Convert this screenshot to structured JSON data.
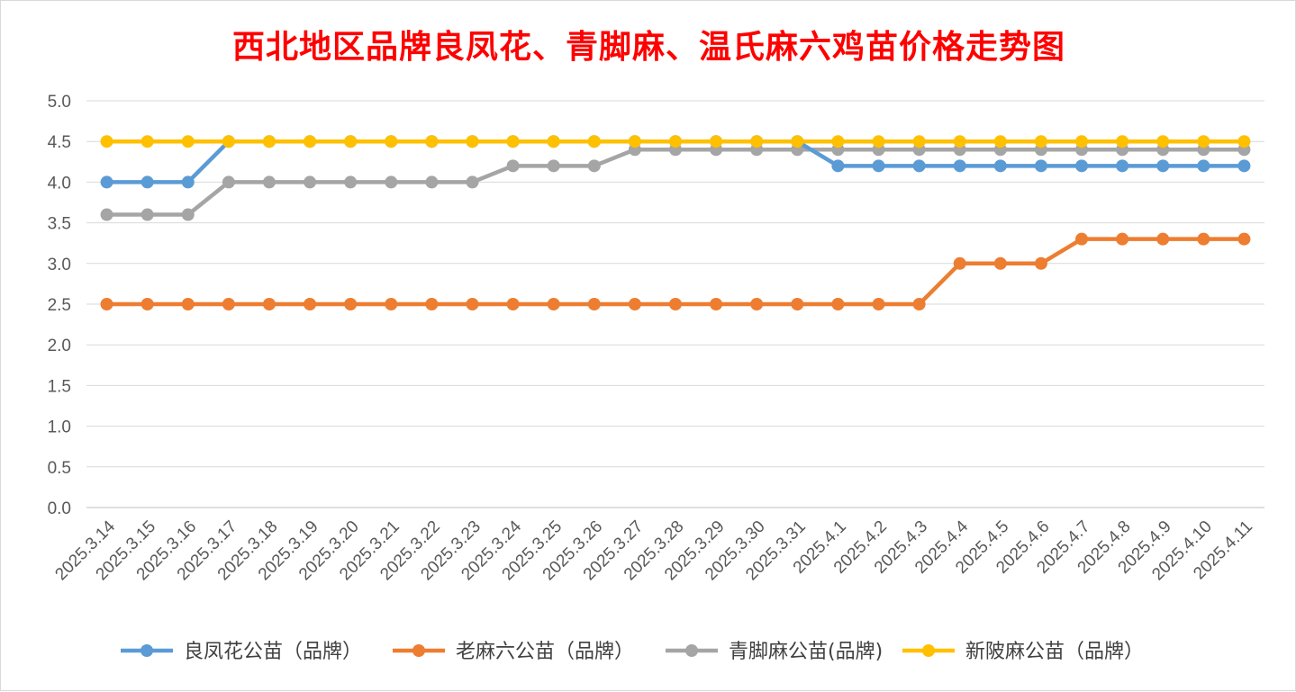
{
  "chart_data": {
    "type": "line",
    "title": "西北地区品牌良凤花、青脚麻、温氏麻六鸡苗价格走势图",
    "xlabel": "",
    "ylabel": "",
    "ylim": [
      0,
      5
    ],
    "y_ticks": [
      "0.0",
      "0.5",
      "1.0",
      "1.5",
      "2.0",
      "2.5",
      "3.0",
      "3.5",
      "4.0",
      "4.5",
      "5.0"
    ],
    "grid": true,
    "legend_position": "bottom",
    "categories": [
      "2025.3.14",
      "2025.3.15",
      "2025.3.16",
      "2025.3.17",
      "2025.3.18",
      "2025.3.19",
      "2025.3.20",
      "2025.3.21",
      "2025.3.22",
      "2025.3.23",
      "2025.3.24",
      "2025.3.25",
      "2025.3.26",
      "2025.3.27",
      "2025.3.28",
      "2025.3.29",
      "2025.3.30",
      "2025.3.31",
      "2025.4.1",
      "2025.4.2",
      "2025.4.3",
      "2025.4.4",
      "2025.4.5",
      "2025.4.6",
      "2025.4.7",
      "2025.4.8",
      "2025.4.9",
      "2025.4.10",
      "2025.4.11"
    ],
    "series": [
      {
        "name": "良凤花公苗（品牌）",
        "color": "#5b9bd5",
        "values": [
          4.0,
          4.0,
          4.0,
          4.5,
          4.5,
          4.5,
          4.5,
          4.5,
          4.5,
          4.5,
          4.5,
          4.5,
          4.5,
          4.5,
          4.5,
          4.5,
          4.5,
          4.5,
          4.2,
          4.2,
          4.2,
          4.2,
          4.2,
          4.2,
          4.2,
          4.2,
          4.2,
          4.2,
          4.2
        ]
      },
      {
        "name": "老麻六公苗（品牌）",
        "color": "#ed7d31",
        "values": [
          2.5,
          2.5,
          2.5,
          2.5,
          2.5,
          2.5,
          2.5,
          2.5,
          2.5,
          2.5,
          2.5,
          2.5,
          2.5,
          2.5,
          2.5,
          2.5,
          2.5,
          2.5,
          2.5,
          2.5,
          2.5,
          3.0,
          3.0,
          3.0,
          3.3,
          3.3,
          3.3,
          3.3,
          3.3
        ]
      },
      {
        "name": "青脚麻公苗(品牌)",
        "color": "#a5a5a5",
        "values": [
          3.6,
          3.6,
          3.6,
          4.0,
          4.0,
          4.0,
          4.0,
          4.0,
          4.0,
          4.0,
          4.2,
          4.2,
          4.2,
          4.4,
          4.4,
          4.4,
          4.4,
          4.4,
          4.4,
          4.4,
          4.4,
          4.4,
          4.4,
          4.4,
          4.4,
          4.4,
          4.4,
          4.4,
          4.4
        ]
      },
      {
        "name": "新陂麻公苗（品牌）",
        "color": "#ffc000",
        "values": [
          4.5,
          4.5,
          4.5,
          4.5,
          4.5,
          4.5,
          4.5,
          4.5,
          4.5,
          4.5,
          4.5,
          4.5,
          4.5,
          4.5,
          4.5,
          4.5,
          4.5,
          4.5,
          4.5,
          4.5,
          4.5,
          4.5,
          4.5,
          4.5,
          4.5,
          4.5,
          4.5,
          4.5,
          4.5
        ]
      }
    ]
  }
}
